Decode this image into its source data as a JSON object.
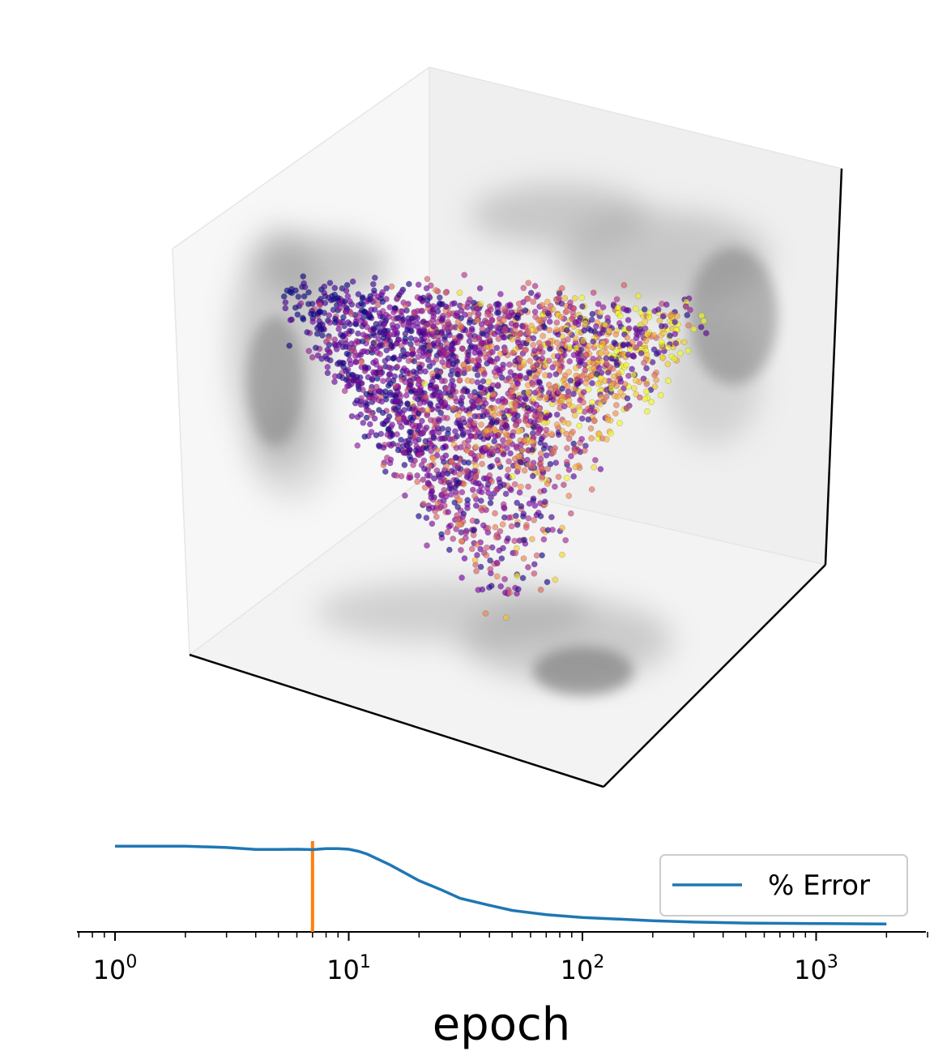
{
  "chart_data": [
    {
      "type": "scatter",
      "projection": "3d",
      "grid": false,
      "axis_ticks": false,
      "colormap": "plasma",
      "point_color_range": [
        "#0d0887",
        "#7e03a8",
        "#cc4778",
        "#f89540",
        "#f0f921"
      ],
      "shadow_color": "#808080",
      "projections_on_walls": [
        "left wall",
        "back wall",
        "floor"
      ],
      "description_of_cloud": "triangular cloud of several thousand points, purple/dark-blue on the left, orange/yellow on the right"
    },
    {
      "type": "line",
      "xlabel": "epoch",
      "xscale": "log",
      "xlim": [
        0.7,
        3000
      ],
      "xticks": [
        {
          "base": "10",
          "exp": "0",
          "value": 1
        },
        {
          "base": "10",
          "exp": "1",
          "value": 10
        },
        {
          "base": "10",
          "exp": "2",
          "value": 100
        },
        {
          "base": "10",
          "exp": "3",
          "value": 1000
        }
      ],
      "ylim": [
        0,
        100
      ],
      "y_axis_visible": false,
      "legend_position": "right",
      "series": [
        {
          "name": "% Error",
          "color": "#1f77b4",
          "x": [
            1,
            2,
            3,
            4,
            5,
            6,
            7,
            8,
            9,
            10,
            11,
            12,
            15,
            20,
            25,
            30,
            40,
            50,
            70,
            100,
            200,
            300,
            500,
            1000,
            2000
          ],
          "y": [
            92,
            92,
            90.5,
            88.5,
            88.5,
            88.7,
            88.3,
            89.3,
            89.4,
            88.7,
            86.5,
            83.5,
            72,
            55,
            45,
            36,
            28.5,
            23,
            18.5,
            15.5,
            12,
            10.5,
            9.5,
            9,
            8.5
          ]
        }
      ],
      "marker_line": {
        "x": 7,
        "color": "#ff7f0e"
      }
    }
  ],
  "legend": {
    "label": "% Error"
  },
  "axis": {
    "xlabel": "epoch"
  }
}
